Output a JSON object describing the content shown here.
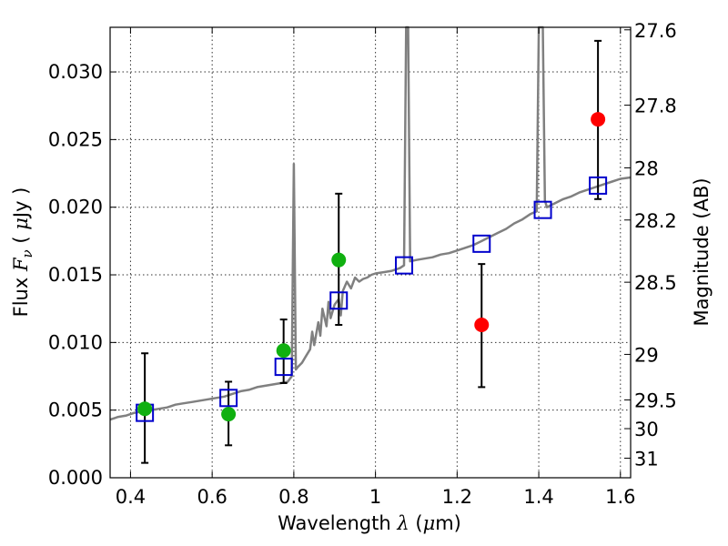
{
  "chart_data": {
    "type": "scatter",
    "xlabel": {
      "text": "Wavelength",
      "symbol": "λ",
      "unit_open": " (",
      "unit_mu": "μ",
      "unit_rest": "m)"
    },
    "ylabel": {
      "text": "Flux",
      "symbol": "F",
      "subscript": "ν",
      "unit_open": "(",
      "unit_mu": "μ",
      "unit_rest": "Jy",
      "unit_close": ")"
    },
    "ylabel_right": "Magnitude (AB)",
    "xlim": [
      0.35,
      1.625
    ],
    "ylim": [
      0.0,
      0.0333
    ],
    "grid": true,
    "x_ticks": [
      0.4,
      0.6,
      0.8,
      1.0,
      1.2,
      1.4,
      1.6
    ],
    "x_tick_labels": [
      "0.4",
      "0.6",
      "0.8",
      "1",
      "1.2",
      "1.4",
      "1.6"
    ],
    "y_ticks": [
      0.0,
      0.005,
      0.01,
      0.015,
      0.02,
      0.025,
      0.03
    ],
    "y_tick_labels": [
      "0.000",
      "0.005",
      "0.010",
      "0.015",
      "0.020",
      "0.025",
      "0.030"
    ],
    "right_ticks": [
      {
        "label": "27.6",
        "mag": 27.6
      },
      {
        "label": "27.8",
        "mag": 27.8
      },
      {
        "label": "28",
        "mag": 28.0
      },
      {
        "label": "28.2",
        "mag": 28.2
      },
      {
        "label": "28.5",
        "mag": 28.5
      },
      {
        "label": "29",
        "mag": 29.0
      },
      {
        "label": "29.5",
        "mag": 29.5
      },
      {
        "label": "30",
        "mag": 30.0
      },
      {
        "label": "31",
        "mag": 31.0
      }
    ],
    "colors": {
      "template": "#808080",
      "model_box": "#0000cc",
      "detection": "#10b010",
      "upper": "#ff0000",
      "errorbar": "#000000"
    },
    "template_spectrum": [
      [
        0.35,
        0.0043
      ],
      [
        0.37,
        0.0045
      ],
      [
        0.39,
        0.0046
      ],
      [
        0.41,
        0.0048
      ],
      [
        0.43,
        0.0049
      ],
      [
        0.45,
        0.005
      ],
      [
        0.47,
        0.0051
      ],
      [
        0.49,
        0.0052
      ],
      [
        0.51,
        0.0054
      ],
      [
        0.53,
        0.0055
      ],
      [
        0.55,
        0.0056
      ],
      [
        0.57,
        0.0057
      ],
      [
        0.59,
        0.0058
      ],
      [
        0.61,
        0.0059
      ],
      [
        0.63,
        0.006
      ],
      [
        0.65,
        0.0062
      ],
      [
        0.67,
        0.0064
      ],
      [
        0.69,
        0.0065
      ],
      [
        0.71,
        0.0067
      ],
      [
        0.73,
        0.0068
      ],
      [
        0.75,
        0.0069
      ],
      [
        0.77,
        0.007
      ],
      [
        0.785,
        0.0071
      ],
      [
        0.795,
        0.0075
      ],
      [
        0.8,
        0.0232
      ],
      [
        0.805,
        0.008
      ],
      [
        0.81,
        0.0082
      ],
      [
        0.82,
        0.0085
      ],
      [
        0.83,
        0.009
      ],
      [
        0.84,
        0.0095
      ],
      [
        0.845,
        0.0108
      ],
      [
        0.85,
        0.0098
      ],
      [
        0.86,
        0.0115
      ],
      [
        0.865,
        0.0105
      ],
      [
        0.87,
        0.0125
      ],
      [
        0.88,
        0.0112
      ],
      [
        0.885,
        0.013
      ],
      [
        0.89,
        0.0118
      ],
      [
        0.9,
        0.0128
      ],
      [
        0.91,
        0.0132
      ],
      [
        0.915,
        0.012
      ],
      [
        0.92,
        0.0138
      ],
      [
        0.93,
        0.0145
      ],
      [
        0.94,
        0.014
      ],
      [
        0.95,
        0.0148
      ],
      [
        0.96,
        0.0145
      ],
      [
        0.97,
        0.0147
      ],
      [
        0.98,
        0.0148
      ],
      [
        0.99,
        0.015
      ],
      [
        1.0,
        0.0151
      ],
      [
        1.02,
        0.0152
      ],
      [
        1.04,
        0.0153
      ],
      [
        1.06,
        0.0155
      ],
      [
        1.07,
        0.0157
      ],
      [
        1.075,
        0.0333
      ],
      [
        1.08,
        0.0333
      ],
      [
        1.085,
        0.016
      ],
      [
        1.1,
        0.0161
      ],
      [
        1.12,
        0.0162
      ],
      [
        1.14,
        0.0163
      ],
      [
        1.16,
        0.0165
      ],
      [
        1.18,
        0.0166
      ],
      [
        1.2,
        0.0168
      ],
      [
        1.22,
        0.017
      ],
      [
        1.24,
        0.0172
      ],
      [
        1.26,
        0.0175
      ],
      [
        1.28,
        0.0178
      ],
      [
        1.3,
        0.0181
      ],
      [
        1.32,
        0.0184
      ],
      [
        1.34,
        0.0188
      ],
      [
        1.36,
        0.0191
      ],
      [
        1.38,
        0.0195
      ],
      [
        1.395,
        0.0197
      ],
      [
        1.4,
        0.0333
      ],
      [
        1.41,
        0.0333
      ],
      [
        1.415,
        0.0205
      ],
      [
        1.42,
        0.02
      ],
      [
        1.44,
        0.0203
      ],
      [
        1.46,
        0.0206
      ],
      [
        1.48,
        0.0208
      ],
      [
        1.5,
        0.0211
      ],
      [
        1.52,
        0.0213
      ],
      [
        1.54,
        0.0215
      ],
      [
        1.56,
        0.0217
      ],
      [
        1.58,
        0.0219
      ],
      [
        1.6,
        0.0221
      ],
      [
        1.625,
        0.0222
      ]
    ],
    "model_boxes": [
      {
        "x": 0.435,
        "y": 0.0048
      },
      {
        "x": 0.64,
        "y": 0.0059
      },
      {
        "x": 0.775,
        "y": 0.0082
      },
      {
        "x": 0.91,
        "y": 0.0131
      },
      {
        "x": 1.07,
        "y": 0.0157
      },
      {
        "x": 1.26,
        "y": 0.0173
      },
      {
        "x": 1.41,
        "y": 0.0198
      },
      {
        "x": 1.545,
        "y": 0.0216
      }
    ],
    "detections": [
      {
        "x": 0.435,
        "y": 0.0051,
        "err_low": 0.0011,
        "err_high": 0.0092
      },
      {
        "x": 0.64,
        "y": 0.0047,
        "err_low": 0.0024,
        "err_high": 0.0071
      },
      {
        "x": 0.775,
        "y": 0.0094,
        "err_low": 0.007,
        "err_high": 0.0117
      },
      {
        "x": 0.91,
        "y": 0.0161,
        "err_low": 0.0113,
        "err_high": 0.021
      }
    ],
    "non_detections": [
      {
        "x": 1.26,
        "y": 0.0113,
        "err_low": 0.0067,
        "err_high": 0.0158
      },
      {
        "x": 1.545,
        "y": 0.0265,
        "err_low": 0.0206,
        "err_high": 0.0323
      }
    ]
  }
}
